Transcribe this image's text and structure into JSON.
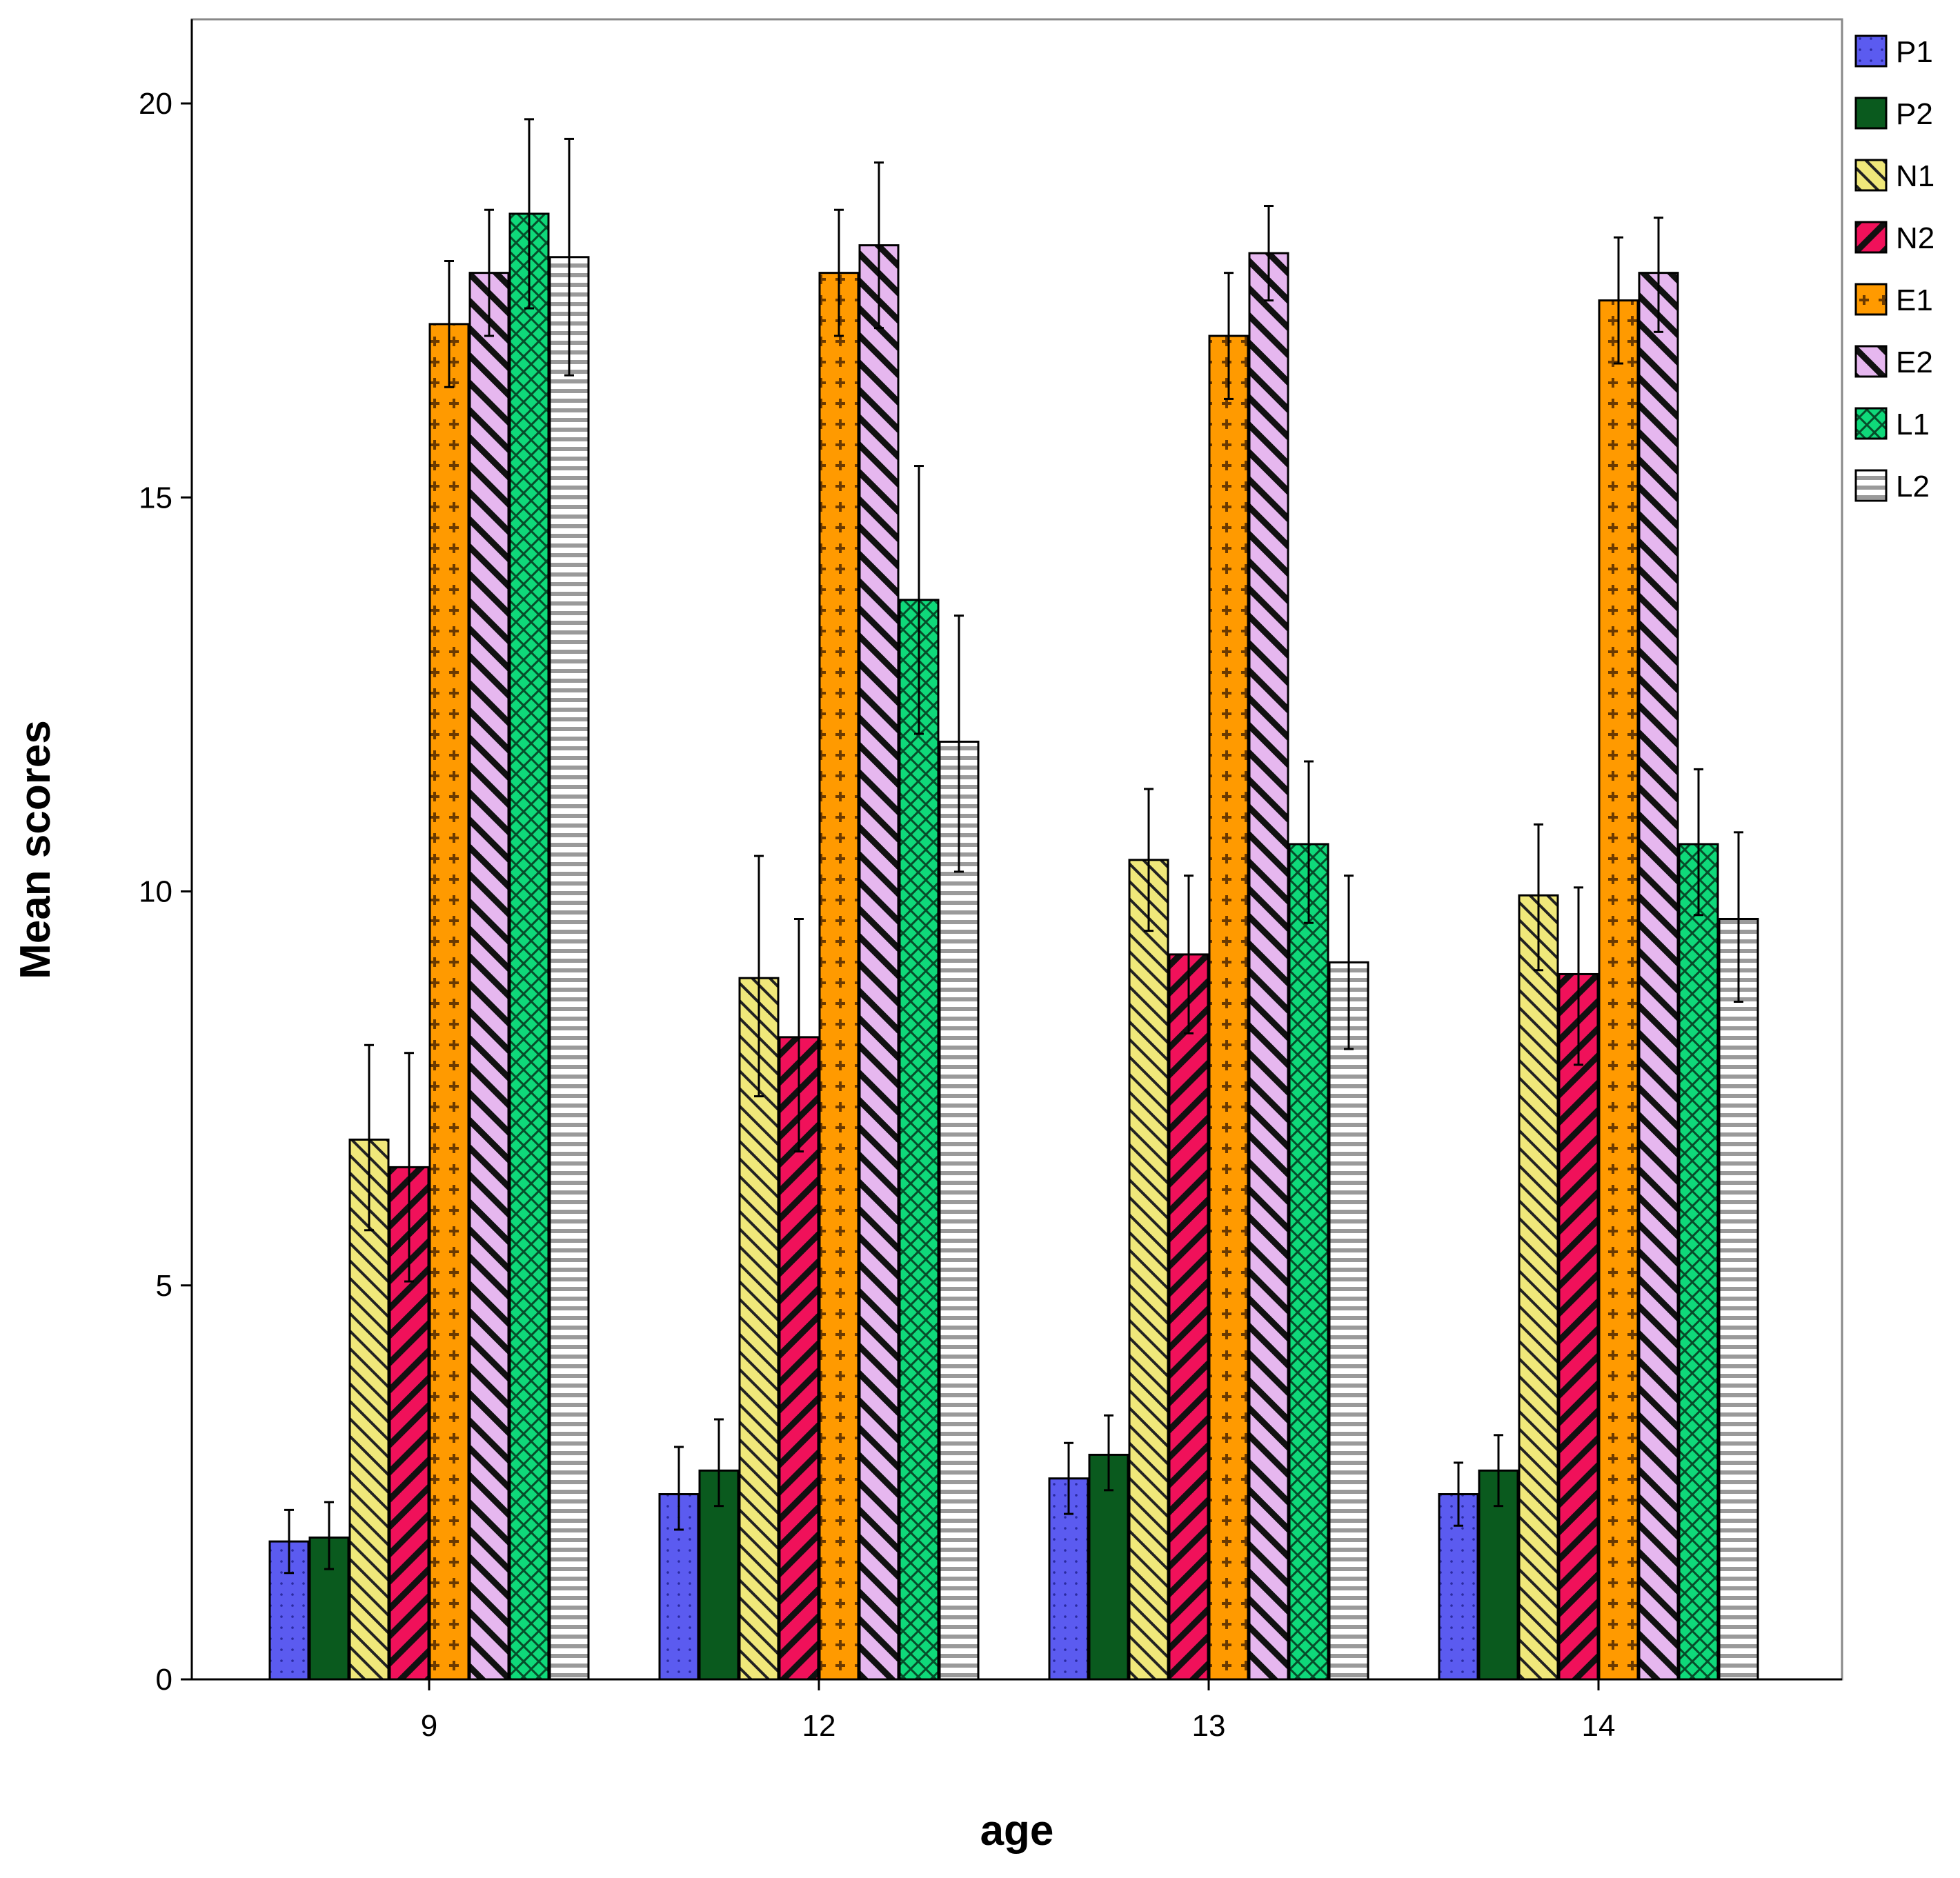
{
  "chart_data": {
    "type": "bar",
    "title": "",
    "xlabel": "age",
    "ylabel": "Mean scores",
    "ylim": [
      0,
      21.1
    ],
    "yticks": [
      "0",
      "5",
      "10",
      "15",
      "20"
    ],
    "grid": false,
    "legend_position": "top-right",
    "error_bars": true,
    "categories": [
      "9",
      "12",
      "13",
      "14"
    ],
    "series": [
      {
        "name": "P1",
        "color": "#5b5bf0",
        "pattern": "dots",
        "values": [
          1.75,
          2.35,
          2.55,
          2.35
        ],
        "err_low": [
          1.35,
          1.9,
          2.1,
          1.95
        ],
        "err_high": [
          2.15,
          2.95,
          3.0,
          2.75
        ]
      },
      {
        "name": "P2",
        "color": "#0a5a1e",
        "pattern": "solid",
        "values": [
          1.8,
          2.65,
          2.85,
          2.65
        ],
        "err_low": [
          1.4,
          2.2,
          2.4,
          2.2
        ],
        "err_high": [
          2.25,
          3.3,
          3.35,
          3.1
        ]
      },
      {
        "name": "N1",
        "color": "#f0e87a",
        "pattern": "diag-thin",
        "values": [
          6.85,
          8.9,
          10.4,
          9.95
        ],
        "err_low": [
          5.7,
          7.4,
          9.5,
          9.0
        ],
        "err_high": [
          8.05,
          10.45,
          11.3,
          10.85
        ]
      },
      {
        "name": "N2",
        "color": "#f0115a",
        "pattern": "diag-back",
        "values": [
          6.5,
          8.15,
          9.2,
          8.95
        ],
        "err_low": [
          5.05,
          6.7,
          8.2,
          7.8
        ],
        "err_high": [
          7.95,
          9.65,
          10.2,
          10.05
        ]
      },
      {
        "name": "E1",
        "color": "#ff9a00",
        "pattern": "plus",
        "values": [
          17.2,
          17.85,
          17.05,
          17.5
        ],
        "err_low": [
          16.4,
          17.05,
          16.25,
          16.7
        ],
        "err_high": [
          18.0,
          18.65,
          17.85,
          18.3
        ]
      },
      {
        "name": "E2",
        "color": "#e6b7ef",
        "pattern": "diag-thick",
        "values": [
          17.85,
          18.2,
          18.1,
          17.85
        ],
        "err_low": [
          17.05,
          17.15,
          17.5,
          17.1
        ],
        "err_high": [
          18.65,
          19.25,
          18.7,
          18.55
        ]
      },
      {
        "name": "L1",
        "color": "#0fd97a",
        "pattern": "cross",
        "values": [
          18.6,
          13.7,
          10.6,
          10.6
        ],
        "err_low": [
          17.4,
          12.0,
          9.6,
          9.7
        ],
        "err_high": [
          19.8,
          15.4,
          11.65,
          11.55
        ]
      },
      {
        "name": "L2",
        "color": "#d9d9d9",
        "pattern": "horiz",
        "values": [
          18.05,
          11.9,
          9.1,
          9.65
        ],
        "err_low": [
          16.55,
          10.25,
          8.0,
          8.6
        ],
        "err_high": [
          19.55,
          13.5,
          10.2,
          10.75
        ]
      }
    ]
  }
}
